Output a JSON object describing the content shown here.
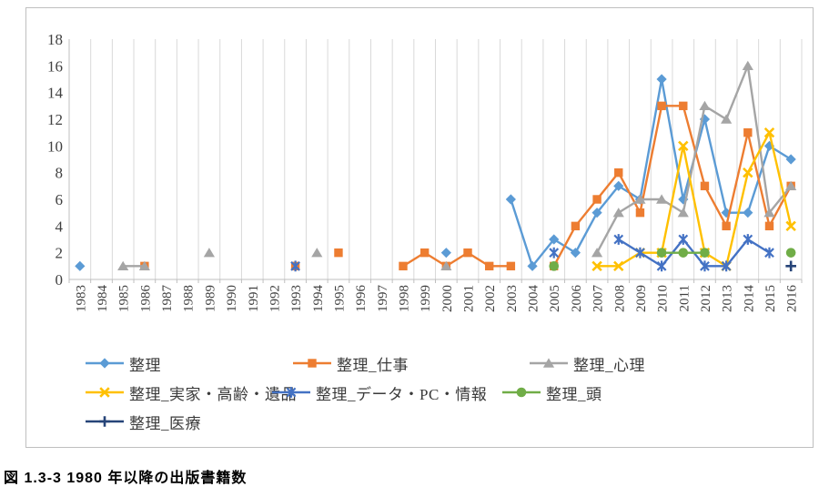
{
  "caption": "図 1.3-3  1980 年以降の出版書籍数",
  "chart_data": {
    "type": "line",
    "title": "",
    "xlabel": "",
    "ylabel": "",
    "ylim": [
      0,
      18
    ],
    "y_tick_step": 2,
    "y_tick_labels": [
      "0",
      "2",
      "4",
      "6",
      "8",
      "10",
      "12",
      "14",
      "16",
      "18"
    ],
    "grid": "vertical-only",
    "legend_position": "bottom",
    "x": [
      1983,
      1984,
      1985,
      1986,
      1987,
      1988,
      1989,
      1990,
      1991,
      1992,
      1993,
      1994,
      1995,
      1996,
      1997,
      1998,
      1999,
      2000,
      2001,
      2002,
      2003,
      2004,
      2005,
      2006,
      2007,
      2008,
      2009,
      2010,
      2011,
      2012,
      2013,
      2014,
      2015,
      2016
    ],
    "series": [
      {
        "name": "整理",
        "marker": "diamond",
        "color": "#5B9BD5",
        "values": [
          1,
          null,
          null,
          null,
          null,
          null,
          null,
          null,
          null,
          null,
          null,
          null,
          null,
          null,
          null,
          null,
          null,
          2,
          null,
          null,
          6,
          1,
          3,
          2,
          5,
          7,
          6,
          15,
          6,
          12,
          5,
          5,
          10,
          9
        ]
      },
      {
        "name": "整理_仕事",
        "marker": "square",
        "color": "#ED7D31",
        "values": [
          null,
          null,
          null,
          1,
          null,
          null,
          null,
          null,
          null,
          null,
          1,
          null,
          2,
          null,
          null,
          1,
          2,
          1,
          2,
          1,
          1,
          null,
          1,
          4,
          6,
          8,
          5,
          13,
          13,
          7,
          4,
          11,
          4,
          7
        ]
      },
      {
        "name": "整理_心理",
        "marker": "triangle",
        "color": "#A5A5A5",
        "values": [
          null,
          null,
          1,
          1,
          null,
          null,
          2,
          null,
          null,
          null,
          null,
          2,
          null,
          null,
          null,
          null,
          null,
          1,
          null,
          null,
          null,
          null,
          null,
          null,
          2,
          5,
          6,
          6,
          5,
          13,
          12,
          16,
          5,
          7
        ]
      },
      {
        "name": "整理_実家・高齢・遺品",
        "marker": "x",
        "color": "#FFC000",
        "values": [
          null,
          null,
          null,
          null,
          null,
          null,
          null,
          null,
          null,
          null,
          null,
          null,
          null,
          null,
          null,
          null,
          null,
          null,
          null,
          null,
          null,
          null,
          null,
          null,
          1,
          1,
          2,
          2,
          10,
          2,
          1,
          8,
          11,
          4
        ]
      },
      {
        "name": "整理_データ・PC・情報",
        "marker": "star",
        "color": "#4472C4",
        "values": [
          null,
          null,
          null,
          null,
          null,
          null,
          null,
          null,
          null,
          null,
          1,
          null,
          null,
          null,
          null,
          null,
          null,
          null,
          null,
          null,
          null,
          null,
          2,
          null,
          null,
          3,
          2,
          1,
          3,
          1,
          1,
          3,
          2,
          null
        ]
      },
      {
        "name": "整理_頭",
        "marker": "circle",
        "color": "#70AD47",
        "values": [
          null,
          null,
          null,
          null,
          null,
          null,
          null,
          null,
          null,
          null,
          null,
          null,
          null,
          null,
          null,
          null,
          null,
          null,
          null,
          null,
          null,
          null,
          1,
          null,
          null,
          null,
          null,
          2,
          2,
          2,
          null,
          null,
          null,
          2
        ]
      },
      {
        "name": "整理_医療",
        "marker": "plus",
        "color": "#264478",
        "values": [
          null,
          null,
          null,
          null,
          null,
          null,
          null,
          null,
          null,
          null,
          null,
          null,
          null,
          null,
          null,
          null,
          null,
          null,
          null,
          null,
          null,
          null,
          null,
          null,
          null,
          null,
          null,
          null,
          null,
          null,
          null,
          null,
          null,
          1
        ]
      }
    ]
  }
}
